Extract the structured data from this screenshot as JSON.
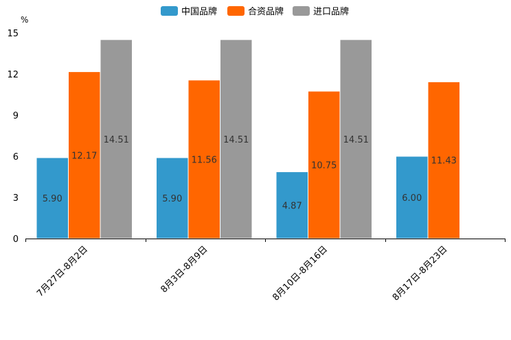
{
  "chart_data": {
    "type": "bar",
    "title": "",
    "ylabel": "%",
    "xlabel": "",
    "ylim": [
      0,
      15
    ],
    "yticks": [
      0,
      3,
      6,
      9,
      12,
      15
    ],
    "categories": [
      "7月27日-8月2日",
      "8月3日-8月9日",
      "8月10日-8月16日",
      "8月17日-8月23日"
    ],
    "series": [
      {
        "name": "中国品牌",
        "color": "#3399cc",
        "values": [
          5.9,
          5.9,
          4.87,
          6.0
        ],
        "labels": [
          "5.90",
          "5.90",
          "4.87",
          "6.00"
        ]
      },
      {
        "name": "合资品牌",
        "color": "#ff6600",
        "values": [
          12.17,
          11.56,
          10.75,
          11.43
        ],
        "labels": [
          "12.17",
          "11.56",
          "10.75",
          "11.43"
        ]
      },
      {
        "name": "进口品牌",
        "color": "#999999",
        "values": [
          14.51,
          14.51,
          14.51,
          null
        ],
        "labels": [
          "14.51",
          "14.51",
          "14.51",
          null
        ]
      }
    ],
    "legend_position": "top-center"
  }
}
